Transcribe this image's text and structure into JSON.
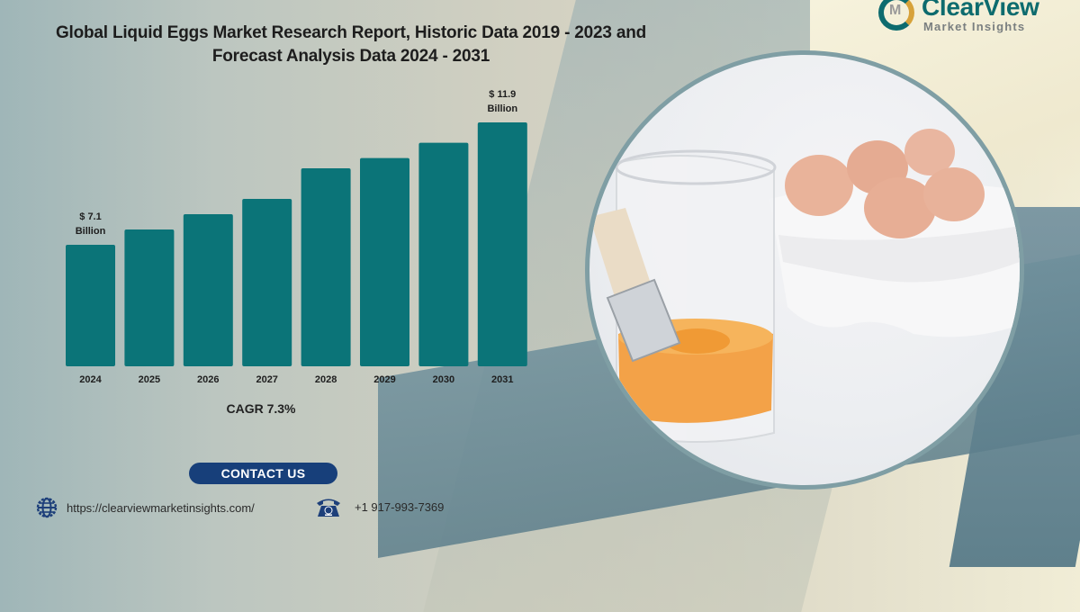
{
  "title": {
    "line1": "Global Liquid Eggs Market Research Report, Historic Data 2019 - 2023 and",
    "line2": "Forecast Analysis Data 2024 - 2031"
  },
  "logo": {
    "name": "ClearView",
    "subtitle": "Market Insights"
  },
  "chart_data": {
    "type": "bar",
    "title": "Global Liquid Eggs Market Research Report, Historic Data 2019 - 2023 and Forecast Analysis Data 2024 - 2031",
    "xlabel": "",
    "ylabel": "",
    "categories": [
      "2024",
      "2025",
      "2026",
      "2027",
      "2028",
      "2029",
      "2030",
      "2031"
    ],
    "values": [
      7.1,
      7.7,
      8.3,
      8.9,
      10.1,
      10.5,
      11.1,
      11.9
    ],
    "unit": "USD Billion",
    "data_labels": {
      "first": {
        "amount": "$ 7.1",
        "unit": "Billion"
      },
      "last": {
        "amount": "$ 11.9",
        "unit": "Billion"
      }
    },
    "bar_color": "#0b7478",
    "grid": false,
    "annotation": "CAGR 7.3%"
  },
  "cagr_label": "CAGR 7.3%",
  "contact": {
    "button_label": "CONTACT US",
    "website": "https://clearviewmarketinsights.com/",
    "phone": "+1 917-993-7369"
  },
  "colors": {
    "accent": "#0b7478",
    "button": "#173f7a",
    "logo_teal": "#0d6b6e"
  }
}
